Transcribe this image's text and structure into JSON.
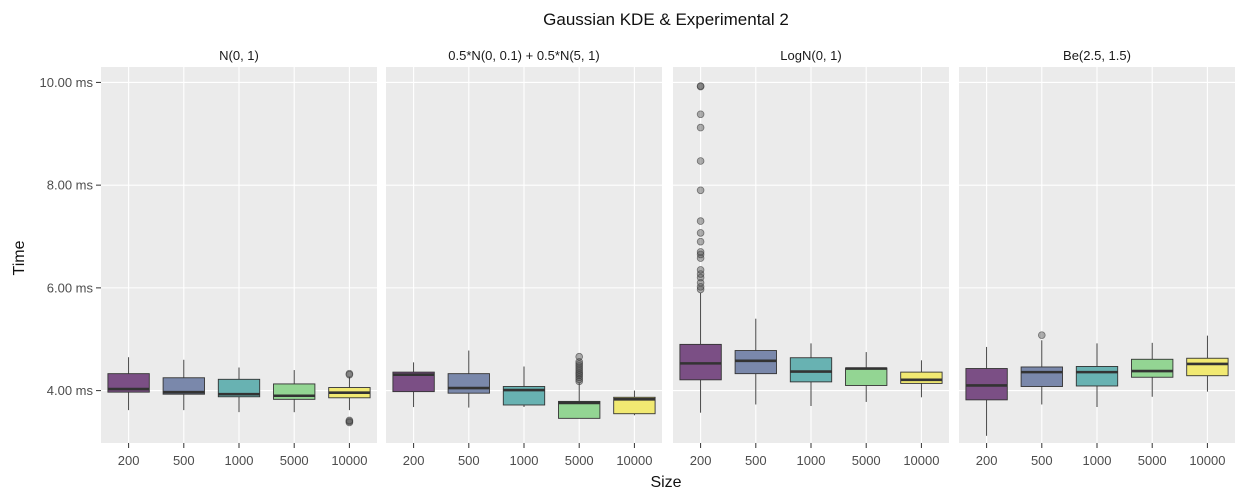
{
  "chart_data": {
    "type": "boxplot",
    "title": "Gaussian KDE & Experimental 2",
    "xlabel": "Size",
    "ylabel": "Time",
    "categories": [
      "200",
      "500",
      "1000",
      "5000",
      "10000"
    ],
    "y_ticks": [
      4,
      6,
      8,
      10
    ],
    "y_tick_labels": [
      "4.00 ms",
      "6.00 ms",
      "8.00 ms",
      "10.00 ms"
    ],
    "ylim": [
      2.98,
      10.3
    ],
    "grid": true,
    "legend": "none",
    "colors": [
      "#7b4f85",
      "#7a88ab",
      "#68b2b2",
      "#93d593",
      "#f1e972"
    ],
    "panels": [
      {
        "label": "N(0, 1)",
        "boxes": [
          {
            "whisker_low": 3.62,
            "q1": 3.97,
            "median": 4.03,
            "q3": 4.33,
            "whisker_high": 4.65,
            "outliers": []
          },
          {
            "whisker_low": 3.62,
            "q1": 3.93,
            "median": 3.97,
            "q3": 4.25,
            "whisker_high": 4.6,
            "outliers": []
          },
          {
            "whisker_low": 3.58,
            "q1": 3.88,
            "median": 3.93,
            "q3": 4.22,
            "whisker_high": 4.45,
            "outliers": []
          },
          {
            "whisker_low": 3.58,
            "q1": 3.83,
            "median": 3.9,
            "q3": 4.13,
            "whisker_high": 4.4,
            "outliers": []
          },
          {
            "whisker_low": 3.62,
            "q1": 3.86,
            "median": 3.96,
            "q3": 4.06,
            "whisker_high": 4.27,
            "outliers": [
              4.33,
              4.31,
              3.4,
              3.38,
              3.42
            ]
          }
        ]
      },
      {
        "label": "0.5*N(0, 0.1) + 0.5*N(5, 1)",
        "boxes": [
          {
            "whisker_low": 3.68,
            "q1": 3.98,
            "median": 4.31,
            "q3": 4.36,
            "whisker_high": 4.55,
            "outliers": []
          },
          {
            "whisker_low": 3.67,
            "q1": 3.95,
            "median": 4.05,
            "q3": 4.33,
            "whisker_high": 4.78,
            "outliers": []
          },
          {
            "whisker_low": 3.68,
            "q1": 3.72,
            "median": 4.01,
            "q3": 4.08,
            "whisker_high": 4.47,
            "outliers": []
          },
          {
            "whisker_low": 3.46,
            "q1": 3.46,
            "median": 3.76,
            "q3": 3.79,
            "whisker_high": 4.15,
            "outliers": [
              4.18,
              4.22,
              4.26,
              4.3,
              4.33,
              4.36,
              4.4,
              4.44,
              4.48,
              4.52,
              4.56,
              4.66
            ]
          },
          {
            "whisker_low": 3.52,
            "q1": 3.55,
            "median": 3.83,
            "q3": 3.87,
            "whisker_high": 4.0,
            "outliers": []
          }
        ]
      },
      {
        "label": "LogN(0, 1)",
        "boxes": [
          {
            "whisker_low": 3.57,
            "q1": 4.21,
            "median": 4.53,
            "q3": 4.9,
            "whisker_high": 5.9,
            "outliers": [
              5.97,
              6.02,
              6.1,
              6.2,
              6.27,
              6.35,
              6.58,
              6.65,
              6.7,
              6.9,
              7.07,
              7.3,
              7.9,
              8.47,
              9.12,
              9.38,
              9.92,
              9.93
            ]
          },
          {
            "whisker_low": 3.73,
            "q1": 4.33,
            "median": 4.58,
            "q3": 4.78,
            "whisker_high": 5.4,
            "outliers": []
          },
          {
            "whisker_low": 3.7,
            "q1": 4.17,
            "median": 4.37,
            "q3": 4.64,
            "whisker_high": 4.92,
            "outliers": []
          },
          {
            "whisker_low": 3.78,
            "q1": 4.1,
            "median": 4.43,
            "q3": 4.44,
            "whisker_high": 4.75,
            "outliers": []
          },
          {
            "whisker_low": 3.87,
            "q1": 4.14,
            "median": 4.21,
            "q3": 4.36,
            "whisker_high": 4.59,
            "outliers": []
          }
        ]
      },
      {
        "label": "Be(2.5, 1.5)",
        "boxes": [
          {
            "whisker_low": 3.12,
            "q1": 3.82,
            "median": 4.1,
            "q3": 4.43,
            "whisker_high": 4.85,
            "outliers": []
          },
          {
            "whisker_low": 3.73,
            "q1": 4.08,
            "median": 4.36,
            "q3": 4.46,
            "whisker_high": 4.98,
            "outliers": [
              5.08
            ]
          },
          {
            "whisker_low": 3.68,
            "q1": 4.09,
            "median": 4.36,
            "q3": 4.47,
            "whisker_high": 4.92,
            "outliers": []
          },
          {
            "whisker_low": 3.88,
            "q1": 4.26,
            "median": 4.38,
            "q3": 4.61,
            "whisker_high": 4.93,
            "outliers": []
          },
          {
            "whisker_low": 3.98,
            "q1": 4.29,
            "median": 4.52,
            "q3": 4.63,
            "whisker_high": 5.07,
            "outliers": []
          }
        ]
      }
    ]
  }
}
